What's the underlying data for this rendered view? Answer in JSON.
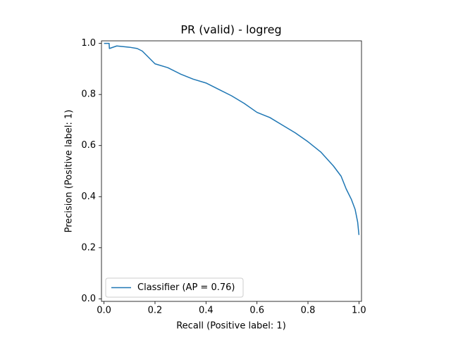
{
  "chart_data": {
    "type": "line",
    "title": "PR (valid) - logreg",
    "x_label": "Recall (Positive label: 1)",
    "y_label": "Precision (Positive label: 1)",
    "x": [
      0,
      0.02,
      0.021,
      0.05,
      0.1,
      0.13,
      0.15,
      0.2,
      0.25,
      0.3,
      0.35,
      0.4,
      0.45,
      0.5,
      0.55,
      0.6,
      0.65,
      0.7,
      0.75,
      0.8,
      0.85,
      0.9,
      0.93,
      0.95,
      0.97,
      0.985,
      0.995,
      1.0
    ],
    "series": [
      {
        "name": "Classifier (AP = 0.76)",
        "color": "#1f77b4",
        "values": [
          1.0,
          1.0,
          0.98,
          0.99,
          0.985,
          0.98,
          0.97,
          0.92,
          0.905,
          0.88,
          0.86,
          0.845,
          0.82,
          0.795,
          0.765,
          0.73,
          0.71,
          0.68,
          0.65,
          0.615,
          0.575,
          0.52,
          0.48,
          0.43,
          0.39,
          0.35,
          0.3,
          0.25
        ]
      }
    ],
    "xlim": [
      -0.01,
      1.01
    ],
    "ylim": [
      -0.01,
      1.01
    ],
    "xticks": [
      {
        "value": 0,
        "label": "0.0"
      },
      0.2,
      0.4,
      0.6,
      0.8,
      {
        "value": 1,
        "label": "1.0"
      }
    ],
    "yticks": [
      {
        "value": 0,
        "label": "0.0"
      },
      0.2,
      0.4,
      0.6,
      0.8,
      {
        "value": 1,
        "label": "1.0"
      }
    ],
    "grid": false,
    "legend": "lower left"
  }
}
